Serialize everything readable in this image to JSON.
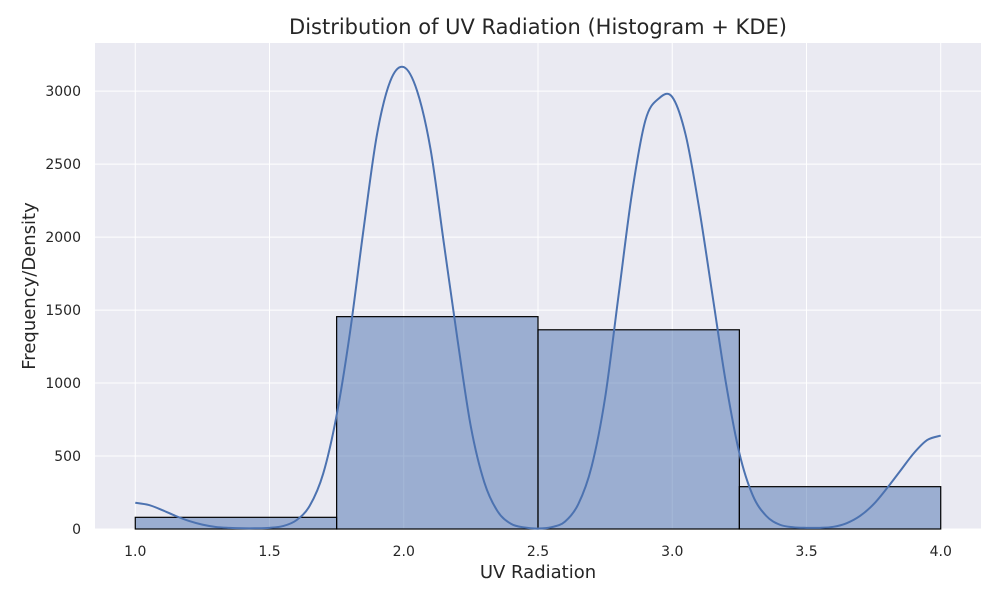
{
  "chart_data": {
    "type": "bar",
    "title": "Distribution of UV Radiation (Histogram + KDE)",
    "xlabel": "UV Radiation",
    "ylabel": "Frequency/Density",
    "xlim": [
      0.85,
      4.15
    ],
    "ylim": [
      0,
      3330
    ],
    "xticks": [
      "1.0",
      "1.5",
      "2.0",
      "2.5",
      "3.0",
      "3.5",
      "4.0"
    ],
    "yticks": [
      "0",
      "500",
      "1000",
      "1500",
      "2000",
      "2500",
      "3000"
    ],
    "grid": true,
    "histogram": {
      "bins": [
        {
          "start": 1.0,
          "end": 1.75,
          "count": 80
        },
        {
          "start": 1.75,
          "end": 2.5,
          "count": 1455
        },
        {
          "start": 2.5,
          "end": 3.25,
          "count": 1365
        },
        {
          "start": 3.25,
          "end": 4.0,
          "count": 290
        }
      ]
    },
    "kde": {
      "x": [
        1.0,
        1.05,
        1.1,
        1.15,
        1.2,
        1.25,
        1.3,
        1.35,
        1.4,
        1.45,
        1.5,
        1.55,
        1.6,
        1.65,
        1.7,
        1.75,
        1.8,
        1.85,
        1.9,
        1.95,
        2.0,
        2.05,
        2.1,
        2.15,
        2.2,
        2.25,
        2.3,
        2.35,
        2.4,
        2.45,
        2.5,
        2.55,
        2.6,
        2.65,
        2.7,
        2.75,
        2.8,
        2.85,
        2.9,
        2.95,
        3.0,
        3.05,
        3.1,
        3.15,
        3.2,
        3.25,
        3.3,
        3.35,
        3.4,
        3.45,
        3.5,
        3.55,
        3.6,
        3.65,
        3.7,
        3.75,
        3.8,
        3.85,
        3.9,
        3.95,
        4.0
      ],
      "y": [
        180,
        165,
        130,
        90,
        55,
        30,
        14,
        8,
        5,
        5,
        8,
        20,
        60,
        160,
        380,
        780,
        1350,
        2050,
        2700,
        3070,
        3165,
        3000,
        2600,
        1950,
        1300,
        700,
        320,
        120,
        35,
        10,
        3,
        12,
        50,
        170,
        430,
        900,
        1600,
        2300,
        2800,
        2950,
        2960,
        2700,
        2200,
        1600,
        1000,
        520,
        230,
        90,
        30,
        12,
        8,
        8,
        15,
        40,
        90,
        170,
        280,
        400,
        520,
        610,
        640
      ]
    },
    "colors": {
      "background": "#eaeaf2",
      "grid": "#ffffff",
      "bar_fill": "#4c72b0",
      "bar_fill_opacity": 0.5,
      "bar_edge": "#000000",
      "kde_line": "#4c72b0"
    }
  }
}
